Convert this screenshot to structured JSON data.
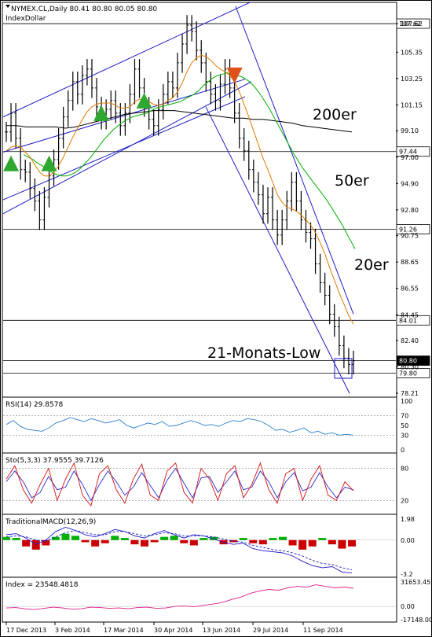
{
  "header": {
    "symbol_line": "NYMEX.CL,Daily  80.41 80.80 80.05 80.80",
    "sub_line": "IndexDollar"
  },
  "colors": {
    "price_bars": "#000000",
    "channel": "#1c1cc8",
    "ma20": "#e07b00",
    "ma50": "#00b000",
    "ma200": "#000000",
    "arrow_up": "#2ea82e",
    "arrow_down": "#e0501a",
    "rsi": "#2a7fd0",
    "stoch_main": "#d01010",
    "stoch_signal": "#2a2ad0",
    "macd_pos": "#00b000",
    "macd_neg": "#cc0000",
    "macd_signal": "#1c1cc8",
    "index_line": "#e0208a"
  },
  "annotations": {
    "ma200": "200er",
    "ma50": "50er",
    "ma20": "20er",
    "low": "21-Monats-Low"
  },
  "x_axis_labels": [
    "17 Dec 2013",
    "3 Feb 2014",
    "17 Mar 2014",
    "30 Apr 2014",
    "13 Jun 2014",
    "29 Jul 2014",
    "11 Sep 2014"
  ],
  "chart_data": [
    {
      "type": "line",
      "panel": "price",
      "title": "NYMEX.CL,Daily",
      "ylim": [
        78.21,
        109.0
      ],
      "y_ticks": [
        107.62,
        105.35,
        103.25,
        101.15,
        99.1,
        97.0,
        94.9,
        92.8,
        90.75,
        88.65,
        86.55,
        84.45,
        82.4,
        80.3,
        78.21
      ],
      "price_levels": [
        107.62,
        97.44,
        91.26,
        84.01,
        80.8,
        79.8
      ],
      "ohlc_last": {
        "open": 80.41,
        "high": 80.8,
        "low": 80.05,
        "close": 80.8
      },
      "series": [
        {
          "name": "price",
          "values": [
            99.0,
            100.5,
            98.5,
            96.0,
            95.8,
            94.5,
            93.5,
            92.0,
            93.8,
            95.5,
            96.8,
            98.5,
            100.2,
            101.5,
            103.0,
            102.0,
            103.5,
            104.0,
            102.5,
            101.0,
            100.0,
            100.8,
            101.5,
            100.5,
            99.5,
            100.5,
            102.0,
            104.0,
            102.5,
            101.0,
            100.0,
            99.5,
            100.8,
            102.0,
            103.0,
            102.5,
            104.5,
            106.0,
            107.5,
            107.0,
            105.5,
            104.5,
            103.0,
            102.0,
            101.5,
            102.8,
            104.0,
            102.5,
            100.5,
            98.5,
            97.5,
            96.0,
            95.0,
            94.0,
            92.5,
            93.8,
            92.0,
            90.8,
            92.0,
            93.5,
            95.0,
            93.5,
            92.0,
            91.0,
            90.5,
            88.5,
            87.0,
            86.0,
            84.5,
            83.5,
            82.0,
            81.0,
            80.5,
            80.8
          ]
        },
        {
          "name": "20er",
          "values": [
            97.5,
            97.8,
            97.9,
            97.8,
            97.4,
            97.0,
            96.4,
            95.8,
            95.5,
            95.5,
            95.8,
            96.3,
            97.0,
            97.8,
            98.6,
            99.3,
            100.0,
            100.6,
            101.0,
            101.2,
            101.3,
            101.3,
            101.3,
            101.1,
            100.9,
            100.9,
            101.0,
            101.4,
            101.6,
            101.6,
            101.4,
            101.2,
            101.1,
            101.2,
            101.5,
            101.7,
            102.2,
            102.9,
            103.8,
            104.5,
            104.9,
            105.1,
            105.0,
            104.7,
            104.3,
            104.0,
            103.8,
            103.5,
            103.0,
            102.2,
            101.2,
            100.2,
            99.1,
            98.0,
            96.9,
            96.0,
            95.0,
            94.0,
            93.4,
            93.0,
            92.9,
            92.7,
            92.4,
            92.0,
            91.6,
            91.0,
            90.2,
            89.3,
            88.2,
            87.2,
            86.2,
            85.3,
            84.4,
            83.7
          ]
        },
        {
          "name": "50er",
          "values": [
            97.2,
            97.0,
            96.8,
            96.5,
            96.3,
            96.0,
            95.8,
            95.6,
            95.5,
            95.5,
            95.6,
            95.8,
            96.1,
            96.5,
            96.9,
            97.4,
            97.9,
            98.4,
            98.8,
            99.2,
            99.5,
            99.8,
            100.0,
            100.2,
            100.3,
            100.4,
            100.5,
            100.7,
            100.9,
            101.0,
            101.1,
            101.2,
            101.3,
            101.4,
            101.6,
            101.8,
            102.0,
            102.3,
            102.7,
            103.0,
            103.3,
            103.5,
            103.6,
            103.7,
            103.6,
            103.5,
            103.4,
            103.2,
            102.9,
            102.5,
            102.0,
            101.4,
            100.8,
            100.1,
            99.4,
            98.7,
            98.0,
            97.3,
            96.7,
            96.1,
            95.6,
            95.1,
            94.6,
            94.1,
            93.6,
            93.0,
            92.4,
            91.8,
            91.1,
            90.4,
            89.7
          ]
        },
        {
          "name": "200er",
          "values": [
            99.5,
            99.5,
            99.4,
            99.4,
            99.4,
            99.4,
            99.3,
            99.4,
            99.6,
            99.8,
            100.0,
            100.2,
            100.4,
            100.5,
            100.6,
            100.7,
            100.7,
            100.7,
            100.6,
            100.5,
            100.4,
            100.3,
            100.2,
            100.1,
            100.1,
            100.0,
            100.0,
            99.9,
            99.8,
            99.7,
            99.5,
            99.4,
            99.3,
            99.2,
            99.1,
            99.0
          ]
        },
        {
          "name": "channel_upper_1",
          "values": [
            100.2,
            109.3
          ]
        },
        {
          "name": "channel_lower_1",
          "values": [
            92.5,
            103.0
          ]
        },
        {
          "name": "channel_upper_2",
          "values": [
            97.4,
            103.2
          ]
        },
        {
          "name": "channel_mid_2",
          "values": [
            93.6,
            101.8
          ]
        },
        {
          "name": "down_channel_upper",
          "values": [
            109.0,
            84.5
          ]
        },
        {
          "name": "down_channel_lower",
          "values": [
            101.0,
            78.2
          ]
        }
      ],
      "signals": [
        {
          "kind": "buy",
          "index": 1,
          "value": 96.5
        },
        {
          "kind": "buy",
          "index": 9,
          "value": 96.5
        },
        {
          "kind": "buy",
          "index": 20,
          "value": 100.5
        },
        {
          "kind": "buy",
          "index": 29,
          "value": 101.5
        },
        {
          "kind": "sell",
          "index": 48,
          "value": 103.5
        }
      ]
    },
    {
      "type": "line",
      "panel": "rsi",
      "title": "RSI(14) 29.8578",
      "ylim": [
        0,
        100
      ],
      "y_ticks": [
        100,
        70,
        50,
        30,
        0
      ],
      "series": [
        {
          "name": "RSI(14)",
          "values": [
            52,
            60,
            48,
            42,
            40,
            38,
            45,
            55,
            60,
            66,
            62,
            58,
            64,
            60,
            55,
            58,
            62,
            50,
            45,
            50,
            55,
            52,
            58,
            48,
            50,
            55,
            60,
            56,
            50,
            52,
            48,
            55,
            60,
            58,
            64,
            62,
            58,
            50,
            40,
            42,
            36,
            40,
            45,
            35,
            38,
            32,
            35,
            30,
            32,
            30
          ]
        }
      ]
    },
    {
      "type": "line",
      "panel": "stochastic",
      "title": "Sto(5,3,3) 37.9555 39.7126",
      "ylim": [
        0,
        100
      ],
      "y_ticks": [
        80,
        20
      ],
      "series": [
        {
          "name": "main",
          "values": [
            60,
            85,
            40,
            15,
            50,
            80,
            20,
            60,
            90,
            30,
            10,
            70,
            85,
            40,
            15,
            60,
            88,
            30,
            20,
            75,
            90,
            35,
            15,
            80,
            60,
            20,
            70,
            85,
            25,
            50,
            90,
            40,
            15,
            70,
            80,
            20,
            60,
            85,
            30,
            20,
            55,
            37.96
          ]
        },
        {
          "name": "signal",
          "values": [
            55,
            75,
            55,
            25,
            35,
            65,
            40,
            45,
            75,
            50,
            20,
            50,
            75,
            55,
            30,
            45,
            72,
            48,
            25,
            58,
            80,
            52,
            25,
            62,
            65,
            35,
            55,
            75,
            40,
            45,
            75,
            55,
            25,
            55,
            72,
            38,
            45,
            72,
            45,
            25,
            45,
            39.71
          ]
        }
      ]
    },
    {
      "type": "bar",
      "panel": "macd",
      "title": "TraditionalMACD(12,26,9)",
      "ylim": [
        -3.2,
        1.98
      ],
      "y_ticks": [
        1.98,
        0.0,
        -3.2
      ],
      "series": [
        {
          "name": "histogram",
          "values": [
            0.3,
            0.2,
            -0.6,
            -0.9,
            -0.5,
            0.3,
            0.6,
            0.4,
            -0.2,
            -0.6,
            -0.3,
            0.4,
            0.2,
            -0.4,
            -0.6,
            -0.2,
            0.3,
            0.4,
            -0.3,
            -0.5,
            0.2,
            0.3,
            -0.4,
            -0.2,
            0.2,
            -0.3,
            -0.4,
            0.2,
            0.3,
            -0.5,
            -0.9,
            -0.6,
            0.2,
            -0.4,
            -0.8,
            -0.6
          ]
        },
        {
          "name": "macd",
          "values": [
            0.5,
            0.6,
            0.2,
            -0.4,
            0.0,
            0.8,
            1.2,
            0.9,
            0.5,
            0.3,
            0.6,
            1.0,
            0.8,
            0.4,
            0.2,
            0.6,
            0.9,
            0.5,
            0.2,
            0.5,
            0.4,
            0.1,
            -0.2,
            -0.4,
            -0.3,
            -0.8,
            -1.0,
            -1.1,
            -1.2,
            -1.5,
            -2.0,
            -2.4,
            -2.6,
            -2.5,
            -3.0,
            -3.1
          ]
        },
        {
          "name": "signal",
          "values": [
            0.3,
            0.4,
            0.3,
            0.0,
            -0.1,
            0.3,
            0.7,
            0.9,
            0.7,
            0.5,
            0.5,
            0.8,
            0.8,
            0.6,
            0.4,
            0.5,
            0.7,
            0.6,
            0.4,
            0.4,
            0.4,
            0.3,
            0.1,
            -0.1,
            -0.2,
            -0.5,
            -0.7,
            -0.9,
            -1.0,
            -1.2,
            -1.5,
            -1.9,
            -2.2,
            -2.3,
            -2.6,
            -2.8
          ]
        }
      ]
    },
    {
      "type": "line",
      "panel": "index",
      "title": "Index = 23548.4818",
      "ylim": [
        -17148.0,
        31653.45
      ],
      "y_ticks": [
        31653.45,
        0.0,
        -17148.0
      ],
      "series": [
        {
          "name": "Index",
          "values": [
            -2000,
            -1500,
            -3000,
            -4000,
            -2500,
            -1000,
            -2000,
            -3500,
            -3000,
            -1000,
            -1500,
            -2500,
            -2000,
            -3000,
            -1500,
            -1000,
            -2500,
            -2000,
            0,
            500,
            -500,
            1500,
            3000,
            5000,
            9000,
            12000,
            17000,
            20000,
            22000,
            21000,
            24000,
            26000,
            25000,
            28000,
            26000,
            24000,
            25000,
            23548
          ]
        }
      ]
    }
  ]
}
